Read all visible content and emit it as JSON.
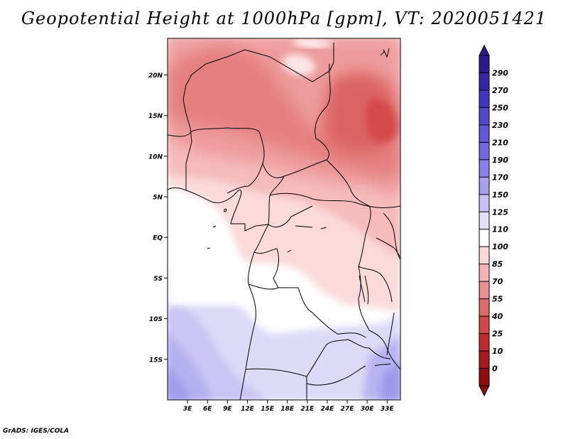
{
  "title": "Geopotential Height at 1000hPa [gpm], VT: 2020051421",
  "footer": "GrADS: IGES/COLA",
  "map": {
    "lat_labels": [
      {
        "lat": 20,
        "label": "20N"
      },
      {
        "lat": 15,
        "label": "15N"
      },
      {
        "lat": 10,
        "label": "10N"
      },
      {
        "lat": 5,
        "label": "5N"
      },
      {
        "lat": 0,
        "label": "EQ"
      },
      {
        "lat": -5,
        "label": "5S"
      },
      {
        "lat": -10,
        "label": "10S"
      },
      {
        "lat": -15,
        "label": "15S"
      }
    ],
    "lon_labels": [
      {
        "lon": 3,
        "label": "3E"
      },
      {
        "lon": 6,
        "label": "6E"
      },
      {
        "lon": 9,
        "label": "9E"
      },
      {
        "lon": 12,
        "label": "12E"
      },
      {
        "lon": 15,
        "label": "15E"
      },
      {
        "lon": 18,
        "label": "18E"
      },
      {
        "lon": 21,
        "label": "21E"
      },
      {
        "lon": 24,
        "label": "24E"
      },
      {
        "lon": 27,
        "label": "27E"
      },
      {
        "lon": 30,
        "label": "30E"
      },
      {
        "lon": 33,
        "label": "33E"
      }
    ],
    "lon_range": [
      0,
      35
    ],
    "lat_range": [
      -20,
      24.5
    ]
  },
  "colorbar": {
    "labels": [
      "290",
      "270",
      "250",
      "230",
      "210",
      "190",
      "170",
      "150",
      "125",
      "110",
      "100",
      "85",
      "70",
      "55",
      "40",
      "25",
      "10",
      "0"
    ],
    "colors": [
      "#2a1a8c",
      "#3325a6",
      "#4036bf",
      "#5048cc",
      "#6158d8",
      "#7468e0",
      "#8a80e6",
      "#a69ff0",
      "#c6c2f5",
      "#e2e0fa",
      "#ffffff",
      "#fbd9d9",
      "#f4b4b4",
      "#ea8f8f",
      "#de6a6a",
      "#d04848",
      "#c02a2a",
      "#a81818",
      "#8e0c0c"
    ]
  }
}
